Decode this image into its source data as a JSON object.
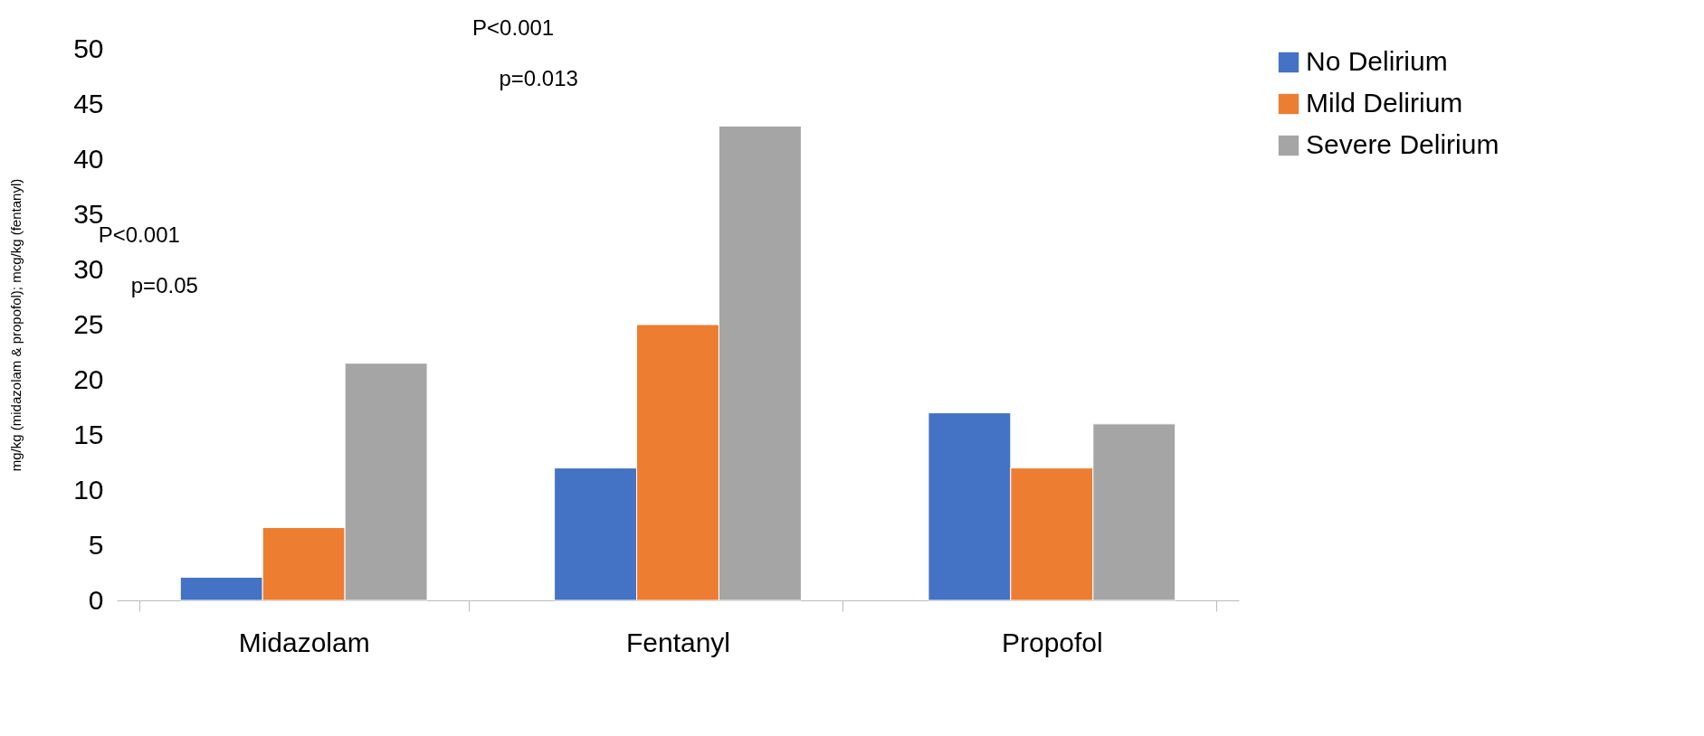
{
  "chart_data": {
    "type": "bar",
    "ylabel": "mg/kg (midazolam & propofol); mcg/kg  (fentanyl)",
    "categories": [
      "Midazolam",
      "Fentanyl",
      "Propofol"
    ],
    "series": [
      {
        "name": "No Delirium",
        "color": "#4472c4",
        "values": [
          2.1,
          12,
          17
        ]
      },
      {
        "name": "Mild Delirium",
        "color": "#ed7d31",
        "values": [
          6.6,
          25,
          12
        ]
      },
      {
        "name": "Severe Delirium",
        "color": "#a5a5a5",
        "values": [
          21.5,
          43,
          16
        ]
      }
    ],
    "ylim": [
      0,
      50
    ],
    "yticks": [
      0,
      5,
      10,
      15,
      20,
      25,
      30,
      35,
      40,
      45,
      50
    ],
    "grid": false,
    "legend": "right",
    "annotations": [
      "P<0.001",
      "p=0.05",
      "P<0.001",
      "p=0.013"
    ]
  }
}
